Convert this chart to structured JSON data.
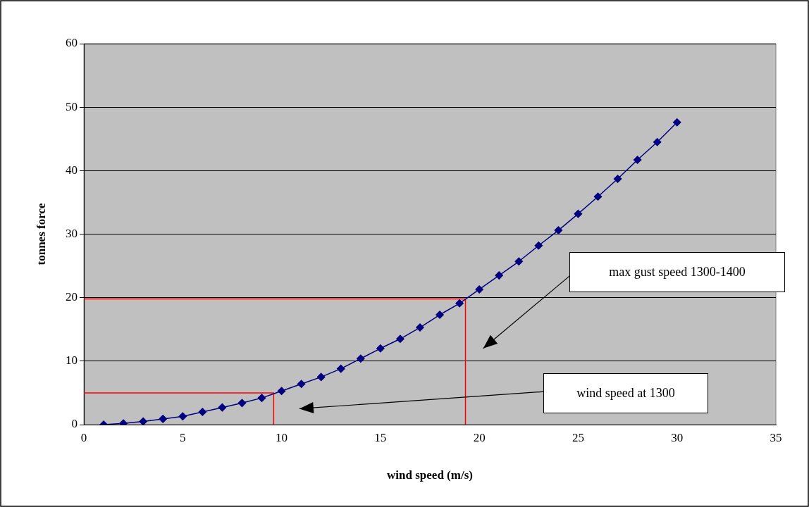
{
  "chart_data": {
    "type": "line",
    "xlabel": "wind speed (m/s)",
    "ylabel": "tonnes force",
    "xlim": [
      0,
      35
    ],
    "xticks": [
      0,
      5,
      10,
      15,
      20,
      25,
      30,
      35
    ],
    "ylim": [
      0,
      60
    ],
    "yticks": [
      0,
      10,
      20,
      30,
      40,
      50,
      60
    ],
    "grid": "y",
    "legend": false,
    "marker": "diamond",
    "line_style": "solid",
    "series": [
      {
        "color": "#000080",
        "x": [
          1,
          2,
          3,
          4,
          5,
          6,
          7,
          8,
          9,
          10,
          11,
          12,
          13,
          14,
          15,
          16,
          17,
          18,
          19,
          20,
          21,
          22,
          23,
          24,
          25,
          26,
          27,
          28,
          29,
          30
        ],
        "values": [
          0,
          0.2,
          0.5,
          0.9,
          1.3,
          2.0,
          2.7,
          3.4,
          4.2,
          5.3,
          6.4,
          7.5,
          8.8,
          10.4,
          12.0,
          13.5,
          15.3,
          17.3,
          19.1,
          21.3,
          23.5,
          25.7,
          28.2,
          30.6,
          33.2,
          35.9,
          38.7,
          41.7,
          44.5,
          47.6
        ]
      },
      {
        "type": "line",
        "color": "#ff0000",
        "marker": "none",
        "x": [
          0,
          19.3,
          19.3
        ],
        "values": [
          19.8,
          19.8,
          0
        ]
      },
      {
        "type": "line",
        "color": "#ff0000",
        "marker": "none",
        "x": [
          0,
          9.6,
          9.6
        ],
        "values": [
          5,
          5,
          0
        ]
      }
    ],
    "annotations": [
      "max gust speed 1300-1400",
      "wind speed at 1300"
    ]
  }
}
